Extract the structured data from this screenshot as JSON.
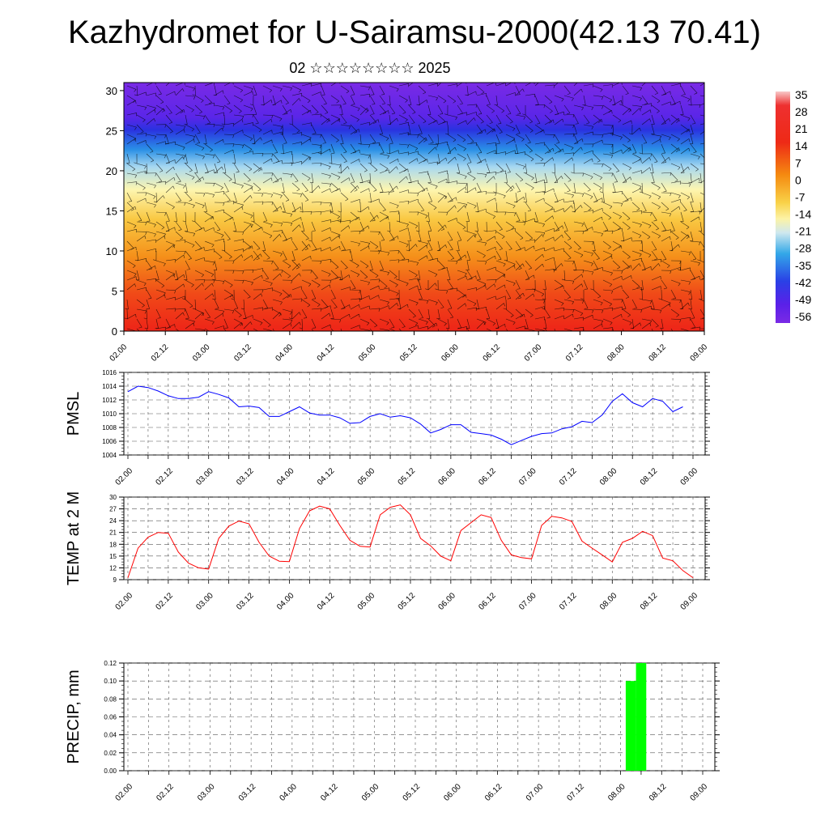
{
  "header": {
    "title": "Kazhydromet for U-Sairamsu-2000(42.13 70.41)",
    "subtitle": "02 ☆☆☆☆☆☆☆☆ 2025"
  },
  "colors": {
    "pmsl_line": "#0000ff",
    "temp_line": "#ff0000",
    "precip_bar": "#00ff00",
    "grid": "#000000"
  },
  "chart_data": [
    {
      "type": "heatmap",
      "name": "",
      "x_tick_labels": [
        "02.00",
        "02.12",
        "03.00",
        "03.12",
        "04.00",
        "04.12",
        "05.00",
        "05.12",
        "06.00",
        "06.12",
        "07.00",
        "07.12",
        "08.00",
        "08.12",
        "09.00"
      ],
      "y_ticks": [
        0,
        5,
        10,
        15,
        20,
        25,
        30
      ],
      "ylim": [
        0,
        31
      ],
      "colorbar": {
        "labels": [
          "35",
          "28",
          "21",
          "14",
          "7",
          "0",
          "-7",
          "-14",
          "-21",
          "-28",
          "-35",
          "-42",
          "-49",
          "-56"
        ],
        "range": [
          -63,
          42
        ]
      },
      "overlay": "wind barbs"
    },
    {
      "type": "line",
      "ylabel": "PMSL",
      "x_tick_labels": [
        "02.00",
        "02.12",
        "03.00",
        "03.12",
        "04.00",
        "04.12",
        "05.00",
        "05.12",
        "06.00",
        "06.12",
        "07.00",
        "07.12",
        "08.00",
        "08.12",
        "09.00"
      ],
      "y_ticks": [
        "1004",
        "1006",
        "1008",
        "1010",
        "1012",
        "1014",
        "1016"
      ],
      "ylim": [
        1004,
        1016
      ],
      "series": [
        {
          "values": [
            1013.2,
            1014.0,
            1013.8,
            1013.3,
            1012.6,
            1012.2,
            1012.2,
            1012.4,
            1013.2,
            1012.8,
            1012.3,
            1011.0,
            1011.1,
            1010.9,
            1009.6,
            1009.6,
            1010.3,
            1011.0,
            1010.1,
            1009.8,
            1009.8,
            1009.4,
            1008.6,
            1008.7,
            1009.6,
            1010.0,
            1009.5,
            1009.7,
            1009.4,
            1008.5,
            1007.2,
            1007.7,
            1008.4,
            1008.4,
            1007.3,
            1007.1,
            1006.9,
            1006.3,
            1005.5,
            1006.1,
            1006.7,
            1007.1,
            1007.2,
            1007.8,
            1008.1,
            1008.9,
            1008.7,
            1009.8,
            1011.8,
            1012.9,
            1011.6,
            1011.0,
            1012.2,
            1011.8,
            1010.3,
            1011.0
          ],
          "x_step_hours": 3
        }
      ],
      "grid": true
    },
    {
      "type": "line",
      "ylabel": "TEMP at 2 M",
      "x_tick_labels": [
        "02.00",
        "02.12",
        "03.00",
        "03.12",
        "04.00",
        "04.12",
        "05.00",
        "05.12",
        "06.00",
        "06.12",
        "07.00",
        "07.12",
        "08.00",
        "08.12",
        "09.00"
      ],
      "y_ticks": [
        "9",
        "12",
        "15",
        "18",
        "21",
        "24",
        "27",
        "30"
      ],
      "ylim": [
        9,
        30
      ],
      "series": [
        {
          "values": [
            9.5,
            17.0,
            19.8,
            21.0,
            20.8,
            16.0,
            13.2,
            12.0,
            11.7,
            19.5,
            22.6,
            23.9,
            23.2,
            18.5,
            15.0,
            13.7,
            13.6,
            22.0,
            26.5,
            27.7,
            27.0,
            22.8,
            19.0,
            17.5,
            17.3,
            25.5,
            27.4,
            28.0,
            25.5,
            19.5,
            17.6,
            15.0,
            13.8,
            21.5,
            23.5,
            25.5,
            24.8,
            19.0,
            15.3,
            14.6,
            14.3,
            22.8,
            25.1,
            24.7,
            23.8,
            18.8,
            17.0,
            15.3,
            13.5,
            18.5,
            19.5,
            21.3,
            20.2,
            14.5,
            13.8,
            11.3,
            9.5
          ],
          "x_step_hours": 3
        }
      ],
      "grid": true
    },
    {
      "type": "bar",
      "ylabel": "PRECIP, mm",
      "x_tick_labels": [
        "02.00",
        "02.12",
        "03.00",
        "03.12",
        "04.00",
        "04.12",
        "05.00",
        "05.12",
        "06.00",
        "06.12",
        "07.00",
        "07.12",
        "08.00",
        "08.12",
        "09.00"
      ],
      "y_ticks": [
        "0.00",
        "0.02",
        "0.04",
        "0.06",
        "0.08",
        "0.10",
        "0.12"
      ],
      "ylim": [
        0,
        0.12
      ],
      "bars": [
        {
          "x_hours": 147,
          "value": 0.1
        },
        {
          "x_hours": 150,
          "value": 0.12
        }
      ],
      "grid": true
    }
  ]
}
